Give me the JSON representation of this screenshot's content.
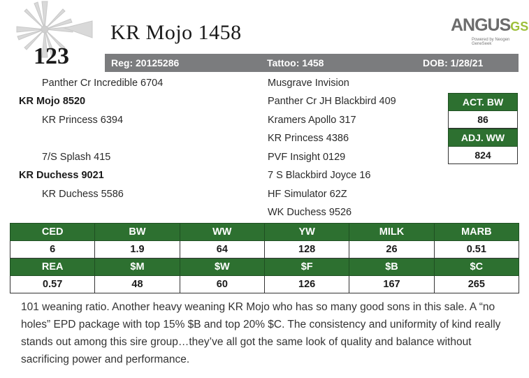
{
  "lot_number": "123",
  "animal_name": "KR Mojo 1458",
  "brand": {
    "name": "ANGUS",
    "suffix": "GS",
    "tagline": "Powered by Neogen GeneSeek"
  },
  "registration": {
    "reg": "Reg: 20125286",
    "tattoo": "Tattoo: 1458",
    "dob": "DOB: 1/28/21"
  },
  "pedigree": {
    "sire_sire": "Panther Cr Incredible 6704",
    "sire": "KR Mojo 8520",
    "sire_dam": "KR Princess 6394",
    "dam_sire": "7/S Splash 415",
    "dam": "KR Duchess 9021",
    "dam_dam": "KR Duchess 5586",
    "g1": "Musgrave Invision",
    "g2": "Panther Cr JH Blackbird 409",
    "g3": "Kramers Apollo 317",
    "g4": "KR Princess 4386",
    "g5": "PVF Insight 0129",
    "g6": "7 S Blackbird Joyce 16",
    "g7": "HF Simulator 62Z",
    "g8": "WK Duchess 9526"
  },
  "actual": {
    "act_bw_label": "ACT. BW",
    "act_bw_value": "86",
    "adj_ww_label": "ADJ. WW",
    "adj_ww_value": "824"
  },
  "epd": {
    "row1_headers": [
      "CED",
      "BW",
      "WW",
      "YW",
      "MILK",
      "MARB"
    ],
    "row1_values": [
      "6",
      "1.9",
      "64",
      "128",
      "26",
      "0.51"
    ],
    "row2_headers": [
      "REA",
      "$M",
      "$W",
      "$F",
      "$B",
      "$C"
    ],
    "row2_values": [
      "0.57",
      "48",
      "60",
      "126",
      "167",
      "265"
    ]
  },
  "description": "101 weaning ratio. Another heavy weaning KR Mojo who has so many good sons in this sale. A “no holes” EPD package with top 15% $B and top 20% $C. The consistency and uniformity of kind really stands out among this sire group…they’ve all got the same look of quality and balance without sacrificing power and performance.",
  "colors": {
    "green": "#2d7030",
    "gray_bar": "#7b7c7e",
    "logo_green": "#9dbf3a"
  }
}
